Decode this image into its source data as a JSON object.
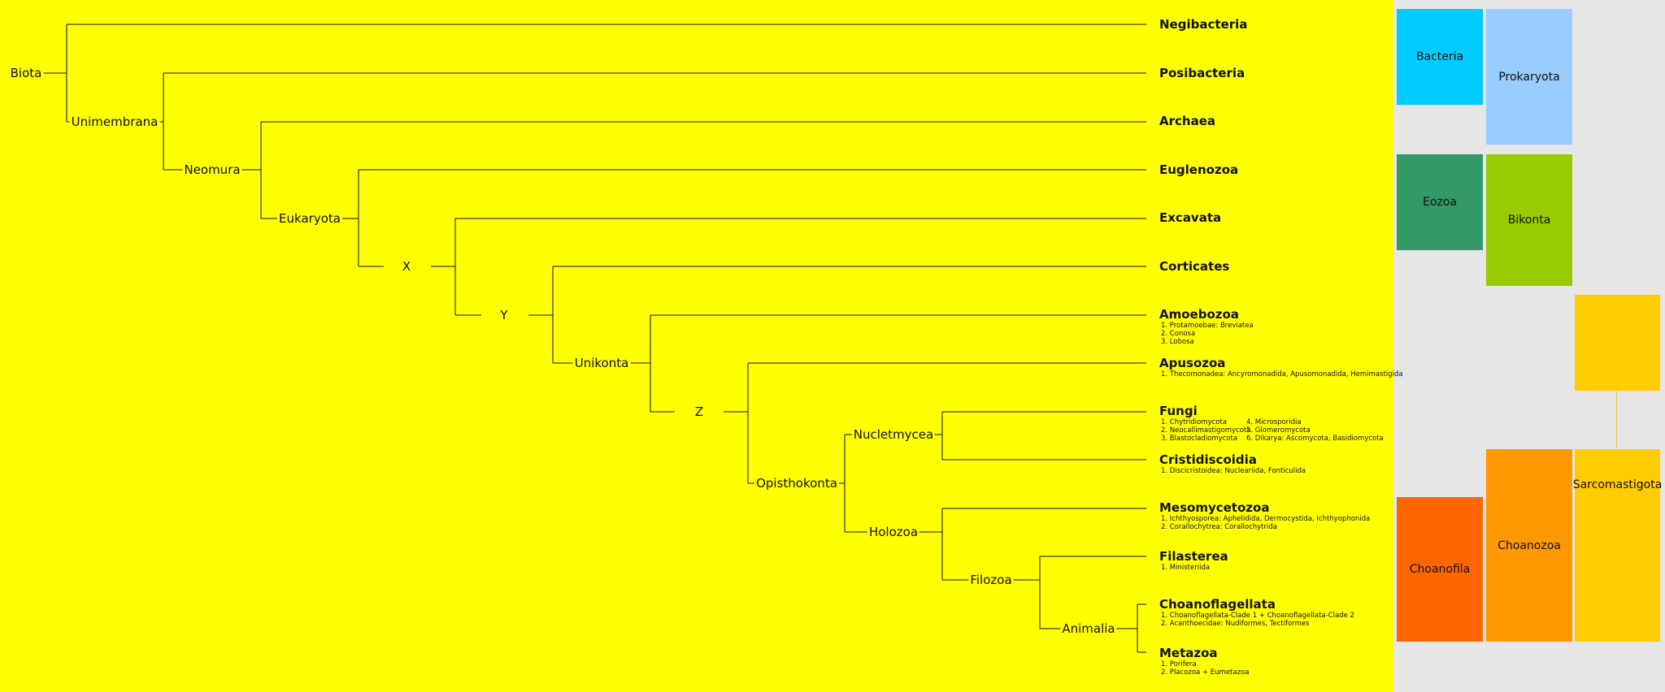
{
  "tree": {
    "internal": {
      "biota": "Biota",
      "unimembrana": "Unimembrana",
      "neomura": "Neomura",
      "eukaryota": "Eukaryota",
      "x": "X",
      "y": "Y",
      "unikonta": "Unikonta",
      "z": "Z",
      "opisthokonta": "Opisthokonta",
      "nucletmycea": "Nucletmycea",
      "holozoa": "Holozoa",
      "filozoa": "Filozoa",
      "animalia": "Animalia"
    },
    "leaves": {
      "negibacteria": {
        "name": "Negibacteria"
      },
      "posibacteria": {
        "name": "Posibacteria"
      },
      "archaea": {
        "name": "Archaea"
      },
      "euglenozoa": {
        "name": "Euglenozoa"
      },
      "excavata": {
        "name": "Excavata"
      },
      "corticates": {
        "name": "Corticates"
      },
      "amoebozoa": {
        "name": "Amoebozoa",
        "sub": [
          "1. Protamoebae: Breviatea",
          "2. Conosa",
          "3. Lobosa"
        ]
      },
      "apusozoa": {
        "name": "Apusozoa",
        "sub": [
          "1. Thecomonadea: Ancyromonadida, Apusomonadida, Hemimastigida"
        ]
      },
      "fungi": {
        "name": "Fungi",
        "sub": [
          "1. Chytridiomycota",
          "4. Microsporidia",
          "2. Neocallimastigomycota",
          "5. Glomeromycota",
          "3. Blastocladiomycota",
          "6. Dikarya: Ascomycota, Basidiomycota"
        ]
      },
      "cristidiscoidia": {
        "name": "Cristidiscoidia",
        "sub": [
          "1. Discicristoidea: Nucleariida, Fonticulida"
        ]
      },
      "mesomycetozoa": {
        "name": "Mesomycetozoa",
        "sub": [
          "1. Ichthyosporea: Aphelidida, Dermocystida, Ichthyophonida",
          "2. Corallochytrea: Corallochytrida"
        ]
      },
      "filasterea": {
        "name": "Filasterea",
        "sub": [
          "1. Ministeriida"
        ]
      },
      "choanoflagellata": {
        "name": "Choanoflagellata",
        "sub": [
          "1. Choanoflagellata-Clade 1 + Choanoflagellata-Clade 2",
          "2. Acanthoecidae: Nudiformes, Tectiformes"
        ]
      },
      "metazoa": {
        "name": "Metazoa",
        "sub": [
          "1. Porifera",
          "2. Placozoa + Eumetazoa"
        ]
      }
    }
  },
  "groups": {
    "bacteria": {
      "label": "Bacteria",
      "color": "#00ccff"
    },
    "prokaryota": {
      "label": "Prokaryota",
      "color": "#99ccff"
    },
    "eozoa": {
      "label": "Eozoa",
      "color": "#339966"
    },
    "bikonta": {
      "label": "Bikonta",
      "color": "#99cc00"
    },
    "sarcomastigota": {
      "label": "Sarcomastigota",
      "color": "#ffcc00"
    },
    "choanofila": {
      "label": "Choanofila",
      "color": "#ff6600"
    },
    "choanozoa": {
      "label": "Choanozoa",
      "color": "#ff9900"
    }
  }
}
